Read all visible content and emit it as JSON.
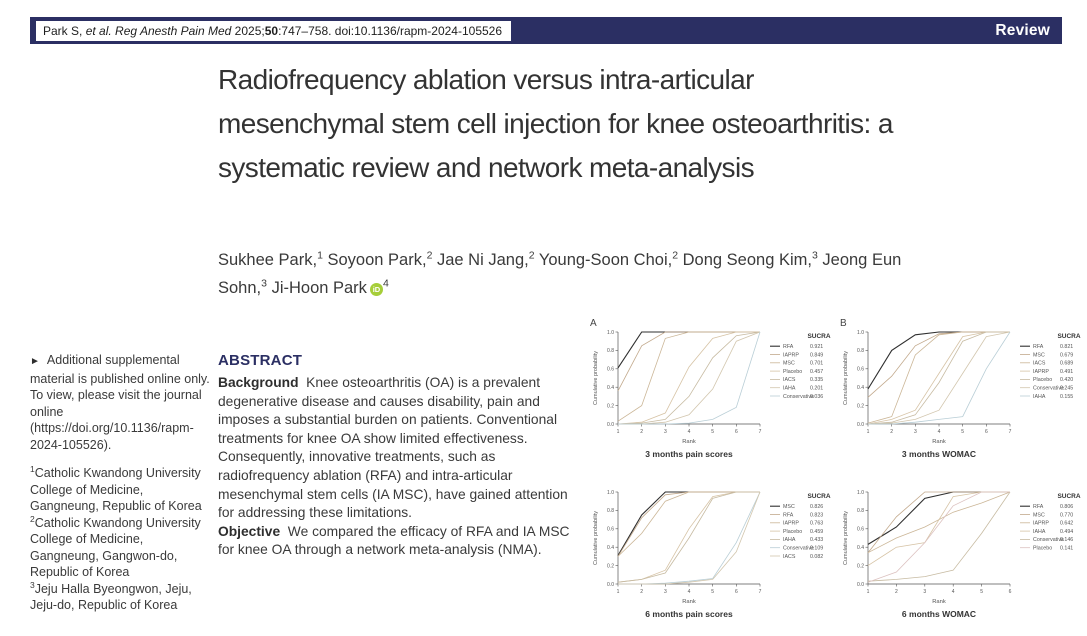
{
  "colors": {
    "navy": "#2b2f63",
    "orcid_green": "#a6ce39",
    "body_text": "#3a3a3a"
  },
  "header": {
    "citation": {
      "pre": "Park S, ",
      "italic": "et al. Reg Anesth Pain Med ",
      "year": "2025;",
      "volume_bold": "50",
      "rest": ":747–758. doi:10.1136/rapm-2024-105526"
    },
    "badge": "Review"
  },
  "title": "Radiofrequency ablation versus intra-articular mesenchymal stem cell injection for knee osteoarthritis: a systematic review and network meta-analysis",
  "orcid_label": "iD",
  "authors": [
    {
      "text": "Sukhee Park,",
      "sup": "1"
    },
    {
      "text": "Soyoon Park,",
      "sup": "2"
    },
    {
      "text": "Jae Ni Jang,",
      "sup": "2"
    },
    {
      "text": "Young-Soon Choi,",
      "sup": "2"
    },
    {
      "text": "Dong Seong Kim,",
      "sup": "3"
    },
    {
      "text": "Jeong Eun Sohn,",
      "sup": "3"
    },
    {
      "text": "Ji-Hoon Park",
      "sup": "4",
      "orcid": true
    }
  ],
  "sidebar": {
    "supplemental_note": {
      "arrow": "►",
      "text_before_link": "Additional supplemental material is published online only. To view, please visit the journal online (",
      "link": "https://doi.org/10.1136/rapm-2024-105526",
      "text_after_link": ")."
    },
    "affiliations": [
      {
        "sup": "1",
        "text": "Catholic Kwandong University College of Medicine, Gangneung, Republic of Korea"
      },
      {
        "sup": "2",
        "text": "Catholic Kwandong University College of Medicine, Gangneung, Gangwon-do, Republic of Korea"
      },
      {
        "sup": "3",
        "text": "Jeju Halla Byeongwon, Jeju, Jeju-do, Republic of Korea"
      }
    ]
  },
  "abstract": {
    "heading": "ABSTRACT",
    "sections": [
      {
        "label": "Background",
        "text": "Knee osteoarthritis (OA) is a prevalent degenerative disease and causes disability, pain and imposes a substantial burden on patients. Conventional treatments for knee OA show limited effectiveness. Consequently, innovative treatments, such as radiofrequency ablation (RFA) and intra-articular mesenchymal stem cells (IA MSC), have gained attention for addressing these limitations."
      },
      {
        "label": "Objective",
        "text": "We compared the efficacy of RFA and IA MSC for knee OA through a network meta-analysis (NMA)."
      }
    ]
  },
  "chart_data": [
    {
      "type": "line",
      "panel_letter": "A",
      "title": "3 months pain scores",
      "xlabel": "Rank",
      "ylabel": "Cumulative probability",
      "x": [
        1,
        2,
        3,
        4,
        5,
        6,
        7
      ],
      "ylim": [
        0,
        1
      ],
      "yticks": [
        "1.0",
        "0.8",
        "0.6",
        "0.4",
        "0.2",
        "0.0"
      ],
      "legend_header": "SUCRA",
      "legend_position": "right",
      "grid": false,
      "series": [
        {
          "name": "RFA",
          "sucra": "0.921",
          "color": "#2f2f2f",
          "values": [
            0.61,
            1.0,
            1.0,
            1.0,
            1.0,
            1.0,
            1.0
          ]
        },
        {
          "name": "IAPRP",
          "sucra": "0.849",
          "color": "#c2a98c",
          "values": [
            0.36,
            0.85,
            1.0,
            1.0,
            1.0,
            1.0,
            1.0
          ]
        },
        {
          "name": "MSC",
          "sucra": "0.701",
          "color": "#cbb697",
          "values": [
            0.03,
            0.2,
            0.93,
            1.0,
            1.0,
            1.0,
            1.0
          ]
        },
        {
          "name": "Placebo",
          "sucra": "0.457",
          "color": "#d6c3a5",
          "values": [
            0.0,
            0.02,
            0.12,
            0.62,
            0.93,
            1.0,
            1.0
          ]
        },
        {
          "name": "IACS",
          "sucra": "0.335",
          "color": "#c7bba2",
          "values": [
            0.0,
            0.01,
            0.05,
            0.3,
            0.72,
            0.96,
            1.0
          ]
        },
        {
          "name": "IAHA",
          "sucra": "0.201",
          "color": "#d2c6ae",
          "values": [
            0.0,
            0.0,
            0.02,
            0.1,
            0.38,
            0.9,
            1.0
          ]
        },
        {
          "name": "Conservative",
          "sucra": "0.036",
          "color": "#b9ced6",
          "values": [
            0.0,
            0.0,
            0.0,
            0.01,
            0.05,
            0.18,
            1.0
          ]
        }
      ]
    },
    {
      "type": "line",
      "panel_letter": "B",
      "title": "3 months WOMAC",
      "xlabel": "Rank",
      "ylabel": "Cumulative probability",
      "x": [
        1,
        2,
        3,
        4,
        5,
        6,
        7
      ],
      "ylim": [
        0,
        1
      ],
      "yticks": [
        "1.0",
        "0.8",
        "0.6",
        "0.4",
        "0.2",
        "0.0"
      ],
      "legend_header": "SUCRA",
      "legend_position": "right",
      "grid": false,
      "series": [
        {
          "name": "RFA",
          "sucra": "0.821",
          "color": "#2f2f2f",
          "values": [
            0.38,
            0.8,
            0.97,
            1.0,
            1.0,
            1.0,
            1.0
          ]
        },
        {
          "name": "MSC",
          "sucra": "0.679",
          "color": "#c2a98c",
          "values": [
            0.29,
            0.52,
            0.85,
            0.98,
            1.0,
            1.0,
            1.0
          ]
        },
        {
          "name": "IACS",
          "sucra": "0.689",
          "color": "#cbb697",
          "values": [
            0.01,
            0.08,
            0.75,
            0.97,
            1.0,
            1.0,
            1.0
          ]
        },
        {
          "name": "IAPRP",
          "sucra": "0.491",
          "color": "#d6c3a5",
          "values": [
            0.0,
            0.05,
            0.15,
            0.55,
            0.95,
            1.0,
            1.0
          ]
        },
        {
          "name": "Placebo",
          "sucra": "0.420",
          "color": "#c7bba2",
          "values": [
            0.0,
            0.02,
            0.1,
            0.45,
            0.9,
            1.0,
            1.0
          ]
        },
        {
          "name": "Conservative",
          "sucra": "0.245",
          "color": "#d2c6ae",
          "values": [
            0.0,
            0.01,
            0.05,
            0.15,
            0.55,
            0.95,
            1.0
          ]
        },
        {
          "name": "IAHA",
          "sucra": "0.155",
          "color": "#b9ced6",
          "values": [
            0.0,
            0.0,
            0.02,
            0.05,
            0.08,
            0.6,
            1.0
          ]
        }
      ]
    },
    {
      "type": "line",
      "panel_letter": "",
      "title": "6 months pain scores",
      "xlabel": "Rank",
      "ylabel": "Cumulative probability",
      "x": [
        1,
        2,
        3,
        4,
        5,
        6,
        7
      ],
      "ylim": [
        0,
        1
      ],
      "yticks": [
        "1.0",
        "0.8",
        "0.6",
        "0.4",
        "0.2",
        "0.0"
      ],
      "legend_header": "SUCRA",
      "legend_position": "right",
      "grid": false,
      "series": [
        {
          "name": "MSC",
          "sucra": "0.826",
          "color": "#2f2f2f",
          "values": [
            0.31,
            0.75,
            1.0,
            1.0,
            1.0,
            1.0,
            1.0
          ]
        },
        {
          "name": "RFA",
          "sucra": "0.823",
          "color": "#c2a98c",
          "values": [
            0.3,
            0.72,
            0.97,
            1.0,
            1.0,
            1.0,
            1.0
          ]
        },
        {
          "name": "IAPRP",
          "sucra": "0.763",
          "color": "#cbb697",
          "values": [
            0.3,
            0.55,
            0.9,
            1.0,
            1.0,
            1.0,
            1.0
          ]
        },
        {
          "name": "Placebo",
          "sucra": "0.459",
          "color": "#d6c3a5",
          "values": [
            0.02,
            0.05,
            0.15,
            0.6,
            0.95,
            1.0,
            1.0
          ]
        },
        {
          "name": "IAHA",
          "sucra": "0.433",
          "color": "#c7bba2",
          "values": [
            0.02,
            0.05,
            0.12,
            0.5,
            0.93,
            1.0,
            1.0
          ]
        },
        {
          "name": "Conservative",
          "sucra": "0.109",
          "color": "#b9ced6",
          "values": [
            0.0,
            0.0,
            0.01,
            0.03,
            0.06,
            0.45,
            1.0
          ]
        },
        {
          "name": "IACS",
          "sucra": "0.082",
          "color": "#d2c6ae",
          "values": [
            0.0,
            0.0,
            0.0,
            0.02,
            0.05,
            0.35,
            1.0
          ]
        }
      ]
    },
    {
      "type": "line",
      "panel_letter": "",
      "title": "6 months WOMAC",
      "xlabel": "Rank",
      "ylabel": "Cumulative probability",
      "x": [
        1,
        2,
        3,
        4,
        5,
        6
      ],
      "ylim": [
        0,
        1
      ],
      "yticks": [
        "1.0",
        "0.8",
        "0.6",
        "0.4",
        "0.2",
        "0.0"
      ],
      "legend_header": "SUCRA",
      "legend_position": "right",
      "grid": false,
      "series": [
        {
          "name": "RFA",
          "sucra": "0.806",
          "color": "#2f2f2f",
          "values": [
            0.43,
            0.62,
            0.93,
            1.0,
            1.0,
            1.0
          ]
        },
        {
          "name": "MSC",
          "sucra": "0.770",
          "color": "#c2a98c",
          "values": [
            0.34,
            0.73,
            1.0,
            1.0,
            1.0,
            1.0
          ]
        },
        {
          "name": "IAPRP",
          "sucra": "0.642",
          "color": "#cbb697",
          "values": [
            0.34,
            0.5,
            0.62,
            0.78,
            0.88,
            1.0
          ]
        },
        {
          "name": "IAHA",
          "sucra": "0.494",
          "color": "#d6c3a5",
          "values": [
            0.2,
            0.4,
            0.45,
            0.95,
            1.0,
            1.0
          ]
        },
        {
          "name": "Conservative",
          "sucra": "0.146",
          "color": "#c7bba2",
          "values": [
            0.03,
            0.05,
            0.08,
            0.15,
            0.55,
            1.0
          ]
        },
        {
          "name": "Placebo",
          "sucra": "0.141",
          "color": "#dcc2c0",
          "values": [
            0.02,
            0.13,
            0.45,
            0.85,
            1.0,
            1.0
          ]
        }
      ]
    }
  ]
}
